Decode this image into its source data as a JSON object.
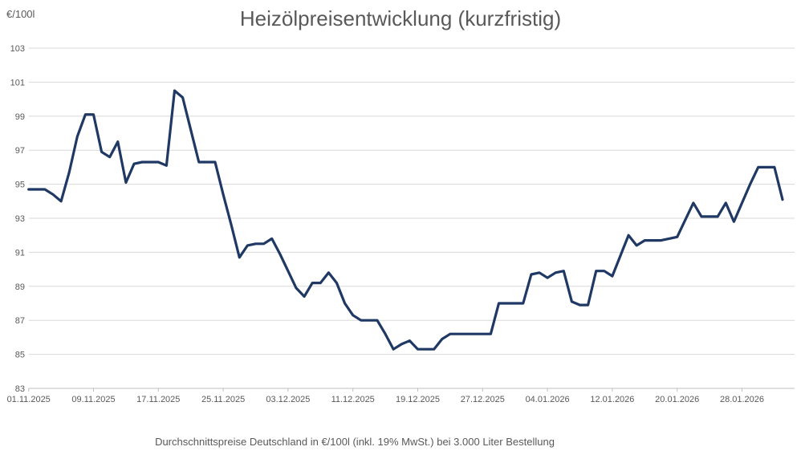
{
  "header": {
    "title": "Heizölpreisentwicklung (kurzfristig)",
    "y_axis_unit_label": "€/100l"
  },
  "footer": {
    "caption": "Durchschnittspreise Deutschland in €/100l (inkl. 19% MwSt.) bei 3.000 Liter Bestellung"
  },
  "colors": {
    "line": "#1f3864",
    "grid": "#d9d9d9",
    "axis": "#bfbfbf",
    "text": "#595959"
  },
  "chart_data": {
    "type": "line",
    "title": "Heizölpreisentwicklung (kurzfristig)",
    "ylabel": "€/100l",
    "xlabel": "",
    "ylim": [
      83,
      103
    ],
    "ytick_step": 2,
    "grid": "horizontal",
    "legend_position": "none",
    "x_start_date": "01.11.2025",
    "x_end_date": "02.02.2026",
    "x_interval": "daily",
    "x_tick_every_days": 8,
    "x_tick_labels": [
      "01.11.2025",
      "09.11.2025",
      "17.11.2025",
      "25.11.2025",
      "03.12.2025",
      "11.12.2025",
      "19.12.2025",
      "27.12.2025",
      "04.01.2026",
      "12.01.2026",
      "20.01.2026",
      "28.01.2026"
    ],
    "values": [
      94.7,
      94.7,
      94.7,
      94.4,
      94.0,
      95.7,
      97.8,
      99.1,
      99.1,
      96.9,
      96.6,
      97.5,
      95.1,
      96.2,
      96.3,
      96.3,
      96.3,
      96.1,
      100.5,
      100.1,
      98.2,
      96.3,
      96.3,
      96.3,
      94.4,
      92.6,
      90.7,
      91.4,
      91.5,
      91.5,
      91.8,
      90.9,
      89.9,
      88.9,
      88.4,
      89.2,
      89.2,
      89.8,
      89.2,
      88.0,
      87.3,
      87.0,
      87.0,
      87.0,
      86.2,
      85.3,
      85.6,
      85.8,
      85.3,
      85.3,
      85.3,
      85.9,
      86.2,
      86.2,
      86.2,
      86.2,
      86.2,
      86.2,
      88.0,
      88.0,
      88.0,
      88.0,
      89.7,
      89.8,
      89.5,
      89.8,
      89.9,
      88.1,
      87.9,
      87.9,
      89.9,
      89.9,
      89.6,
      90.8,
      92.0,
      91.4,
      91.7,
      91.7,
      91.7,
      91.8,
      91.9,
      92.9,
      93.9,
      93.1,
      93.1,
      93.1,
      93.9,
      92.8,
      93.9,
      95.0,
      96.0,
      96.0,
      96.0,
      94.1
    ]
  }
}
